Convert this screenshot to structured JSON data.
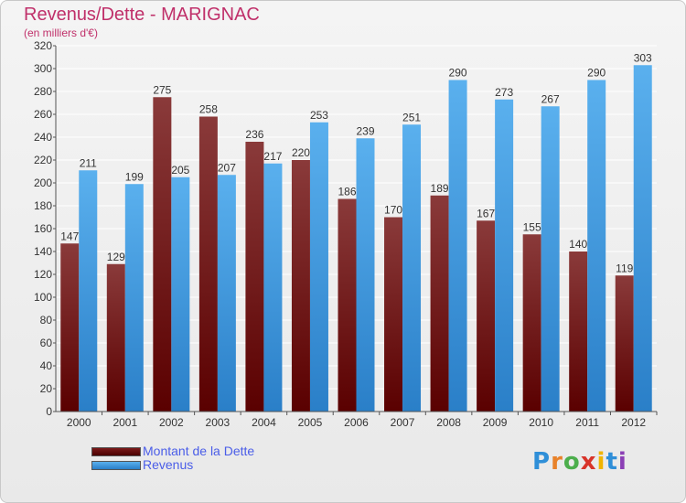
{
  "header": {
    "title": "Revenus/Dette - MARIGNAC",
    "subtitle": "(en milliers d'€)"
  },
  "legend": {
    "items": [
      {
        "label": "Montant de la Dette",
        "color": "#6b0a0a"
      },
      {
        "label": "Revenus",
        "color": "#4aa3e8"
      }
    ]
  },
  "logo": {
    "letters": [
      "P",
      "r",
      "o",
      "x",
      "i",
      "t",
      "i"
    ]
  },
  "chart_data": {
    "type": "bar",
    "title": "Revenus/Dette - MARIGNAC",
    "subtitle": "(en milliers d'€)",
    "categories": [
      "2000",
      "2001",
      "2002",
      "2003",
      "2004",
      "2005",
      "2006",
      "2007",
      "2008",
      "2009",
      "2010",
      "2011",
      "2012"
    ],
    "series": [
      {
        "name": "Montant de la Dette",
        "color": "#6b0a0a",
        "values": [
          147,
          129,
          275,
          258,
          236,
          220,
          186,
          170,
          189,
          167,
          155,
          140,
          119
        ]
      },
      {
        "name": "Revenus",
        "color": "#4aa3e8",
        "values": [
          211,
          199,
          205,
          207,
          217,
          253,
          239,
          251,
          290,
          273,
          267,
          290,
          303
        ]
      }
    ],
    "ylim": [
      0,
      320
    ],
    "yticks": [
      0,
      20,
      40,
      60,
      80,
      100,
      120,
      140,
      160,
      180,
      200,
      220,
      240,
      260,
      280,
      300,
      320
    ],
    "grid": true,
    "legend_position": "bottom-left"
  }
}
